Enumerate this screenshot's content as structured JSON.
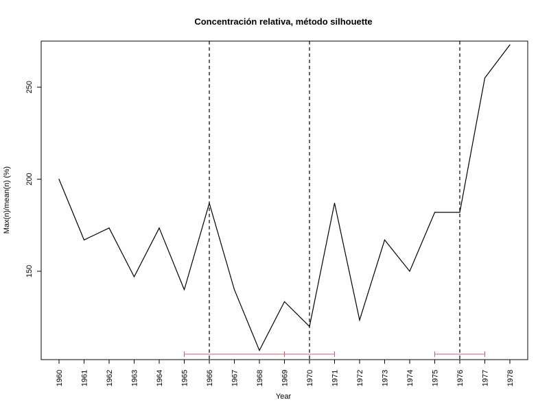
{
  "chart_data": {
    "type": "line",
    "title": "Concentración relativa, método silhouette",
    "xlabel": "Year",
    "ylabel": "Max(n)/mean(n) (%)",
    "categories": [
      "1960",
      "1961",
      "1962",
      "1963",
      "1964",
      "1965",
      "1966",
      "1967",
      "1968",
      "1969",
      "1970",
      "1971",
      "1972",
      "1973",
      "1974",
      "1975",
      "1976",
      "1977",
      "1978"
    ],
    "y_ticks": [
      "150",
      "200",
      "250"
    ],
    "ylim": [
      102,
      275
    ],
    "series": [
      {
        "values": [
          200,
          167,
          173.5,
          147,
          173.5,
          140,
          187,
          140,
          107,
          133.5,
          120,
          187,
          123.5,
          167,
          150,
          182,
          182,
          255,
          273
        ],
        "color": "#000000"
      }
    ],
    "vertical_lines": {
      "years": [
        "1966",
        "1970",
        "1976"
      ],
      "style": "dashed",
      "color": "#000000"
    },
    "intervals": {
      "color": "#cd5c6b",
      "ranges": [
        {
          "from": "1965",
          "to": "1971",
          "ticks": [
            "1965",
            "1969",
            "1971"
          ]
        },
        {
          "from": "1975",
          "to": "1977",
          "ticks": [
            "1975",
            "1977"
          ]
        }
      ]
    },
    "grid": false,
    "legend": "none"
  }
}
